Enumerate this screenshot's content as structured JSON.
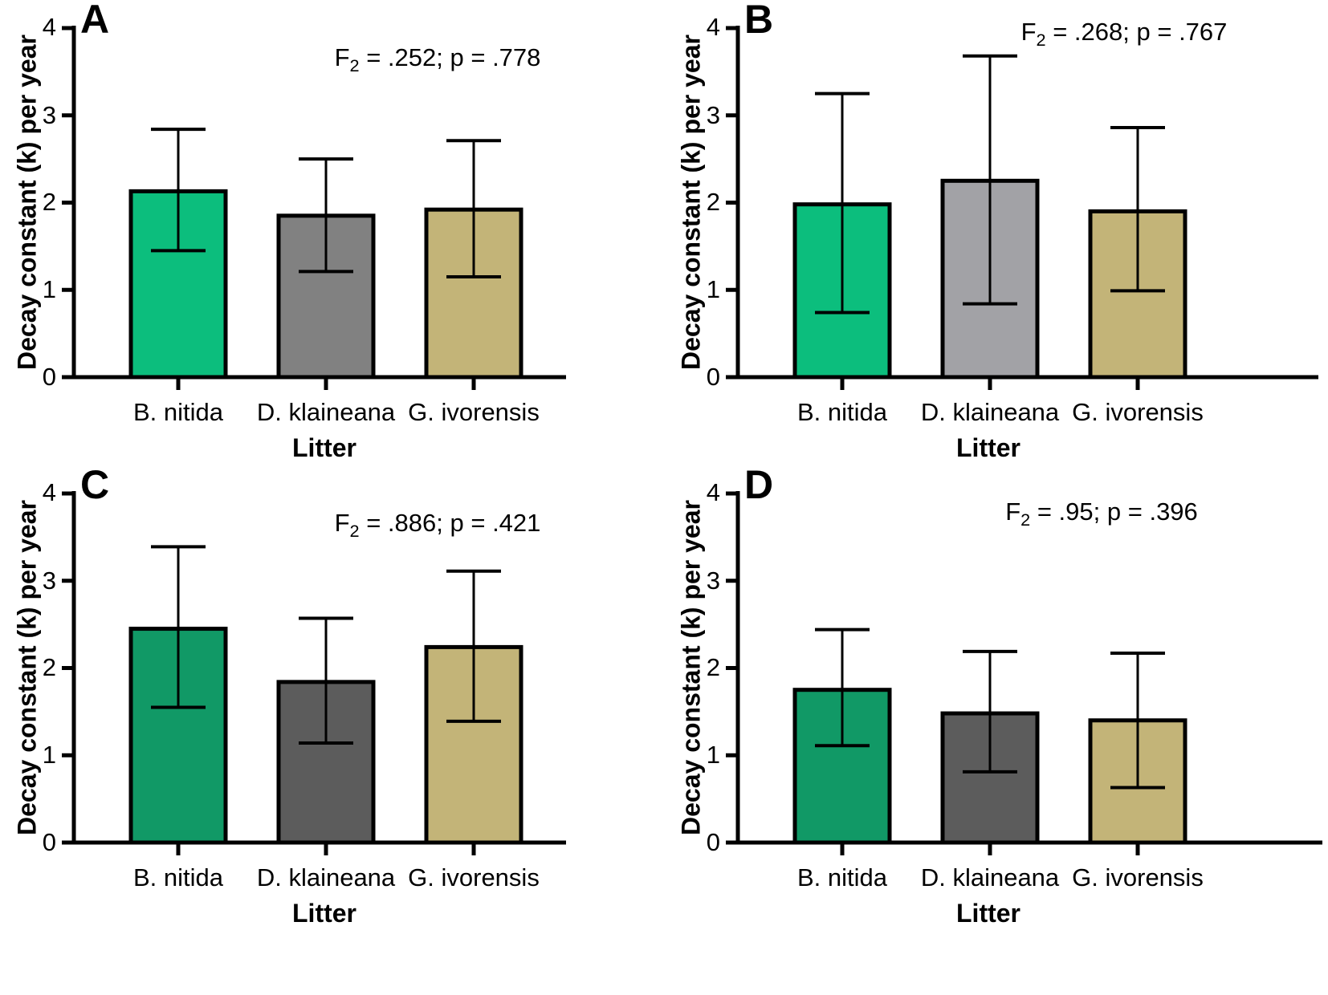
{
  "figure": {
    "ylabel": "Decay constant (k) per year",
    "xlabel": "Litter",
    "categories": [
      "B. nitida",
      "D. klaineana",
      "G. ivorensis"
    ],
    "yticks": [
      0,
      1,
      2,
      3,
      4
    ],
    "ytick_labels": [
      "4",
      "3",
      "2",
      "1",
      "0"
    ],
    "ylim": [
      0,
      4
    ],
    "background": "#ffffff",
    "axis_color": "#000000",
    "error_bar_color": "#000000"
  },
  "chart_data": [
    {
      "type": "bar",
      "panel": "A",
      "annotation": {
        "prefix": "F",
        "sub": "2",
        "eq": " = ",
        "f": ".252",
        "sep": "; p = ",
        "p": ".778"
      },
      "categories": [
        "B. nitida",
        "D. klaineana",
        "G. ivorensis"
      ],
      "values": [
        2.13,
        1.85,
        1.92
      ],
      "error_low": [
        1.45,
        1.21,
        1.15
      ],
      "error_high": [
        2.84,
        2.5,
        2.71
      ],
      "colors": [
        "#0CBE7D",
        "#818181",
        "#C3B478"
      ],
      "xlabel": "Litter",
      "ylabel": "Decay constant (k) per year",
      "ylim": [
        0,
        4
      ]
    },
    {
      "type": "bar",
      "panel": "B",
      "annotation": {
        "prefix": "F",
        "sub": "2",
        "eq": " = ",
        "f": ".268",
        "sep": "; p = ",
        "p": ".767"
      },
      "categories": [
        "B. nitida",
        "D. klaineana",
        "G. ivorensis"
      ],
      "values": [
        1.98,
        2.25,
        1.9
      ],
      "error_low": [
        0.74,
        0.84,
        0.99
      ],
      "error_high": [
        3.25,
        3.68,
        2.86
      ],
      "colors": [
        "#0CBE7D",
        "#A2A2A6",
        "#C3B478"
      ],
      "xlabel": "Litter",
      "ylabel": "Decay constant (k) per year",
      "ylim": [
        0,
        4
      ]
    },
    {
      "type": "bar",
      "panel": "C",
      "annotation": {
        "prefix": "F",
        "sub": "2",
        "eq": " = ",
        "f": ".886",
        "sep": "; p = ",
        "p": ".421"
      },
      "categories": [
        "B. nitida",
        "D. klaineana",
        "G. ivorensis"
      ],
      "values": [
        2.45,
        1.84,
        2.24
      ],
      "error_low": [
        1.55,
        1.14,
        1.39
      ],
      "error_high": [
        3.39,
        2.57,
        3.11
      ],
      "colors": [
        "#119966",
        "#5C5C5C",
        "#C3B478"
      ],
      "xlabel": "Litter",
      "ylabel": "Decay constant (k) per year",
      "ylim": [
        0,
        4
      ]
    },
    {
      "type": "bar",
      "panel": "D",
      "annotation": {
        "prefix": "F",
        "sub": "2",
        "eq": " = ",
        "f": ".95",
        "sep": "; p = ",
        "p": ".396"
      },
      "categories": [
        "B. nitida",
        "D. klaineana",
        "G. ivorensis"
      ],
      "values": [
        1.75,
        1.48,
        1.4
      ],
      "error_low": [
        1.11,
        0.81,
        0.63
      ],
      "error_high": [
        2.44,
        2.19,
        2.17
      ],
      "colors": [
        "#119966",
        "#5C5C5C",
        "#C3B478"
      ],
      "xlabel": "Litter",
      "ylabel": "Decay constant (k) per year",
      "ylim": [
        0,
        4
      ]
    }
  ]
}
